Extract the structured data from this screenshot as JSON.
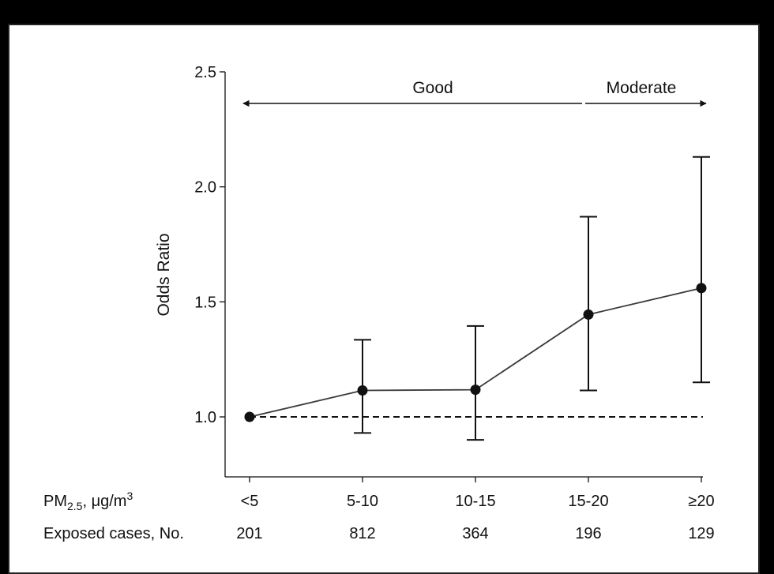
{
  "chart_data": {
    "type": "line",
    "ylabel": "Odds Ratio",
    "ylim": [
      0.72,
      2.5
    ],
    "yticks": [
      "2.5",
      "2.0",
      "1.5",
      "1.0"
    ],
    "ytick_values": [
      2.5,
      2.0,
      1.5,
      1.0
    ],
    "categories": [
      "<5",
      "5-10",
      "10-15",
      "15-20",
      "≥20"
    ],
    "series": [
      {
        "values": [
          1.0,
          1.115,
          1.118,
          1.445,
          1.56
        ],
        "ci_lower": [
          null,
          0.93,
          0.9,
          1.115,
          1.15
        ],
        "ci_upper": [
          null,
          1.335,
          1.395,
          1.87,
          2.13
        ]
      }
    ],
    "reference_line": {
      "y": 1.0,
      "style": "dashed"
    },
    "bands": [
      {
        "label": "Good",
        "from": "<5",
        "to": "15-20"
      },
      {
        "label": "Moderate",
        "from": "15-20",
        "to": "≥20"
      }
    ],
    "rows": [
      {
        "label_main": "PM",
        "label_sub": "2.5",
        "label_rest": ", μg/m",
        "label_sup": "3",
        "values": [
          "<5",
          "5-10",
          "10-15",
          "15-20",
          "≥20"
        ]
      },
      {
        "label": "Exposed cases, No.",
        "values": [
          "201",
          "812",
          "364",
          "196",
          "129"
        ]
      }
    ]
  },
  "colors": {
    "background": "#000000",
    "panel": "#ffffff",
    "ink": "#111111",
    "line": "#3a3a3a"
  }
}
